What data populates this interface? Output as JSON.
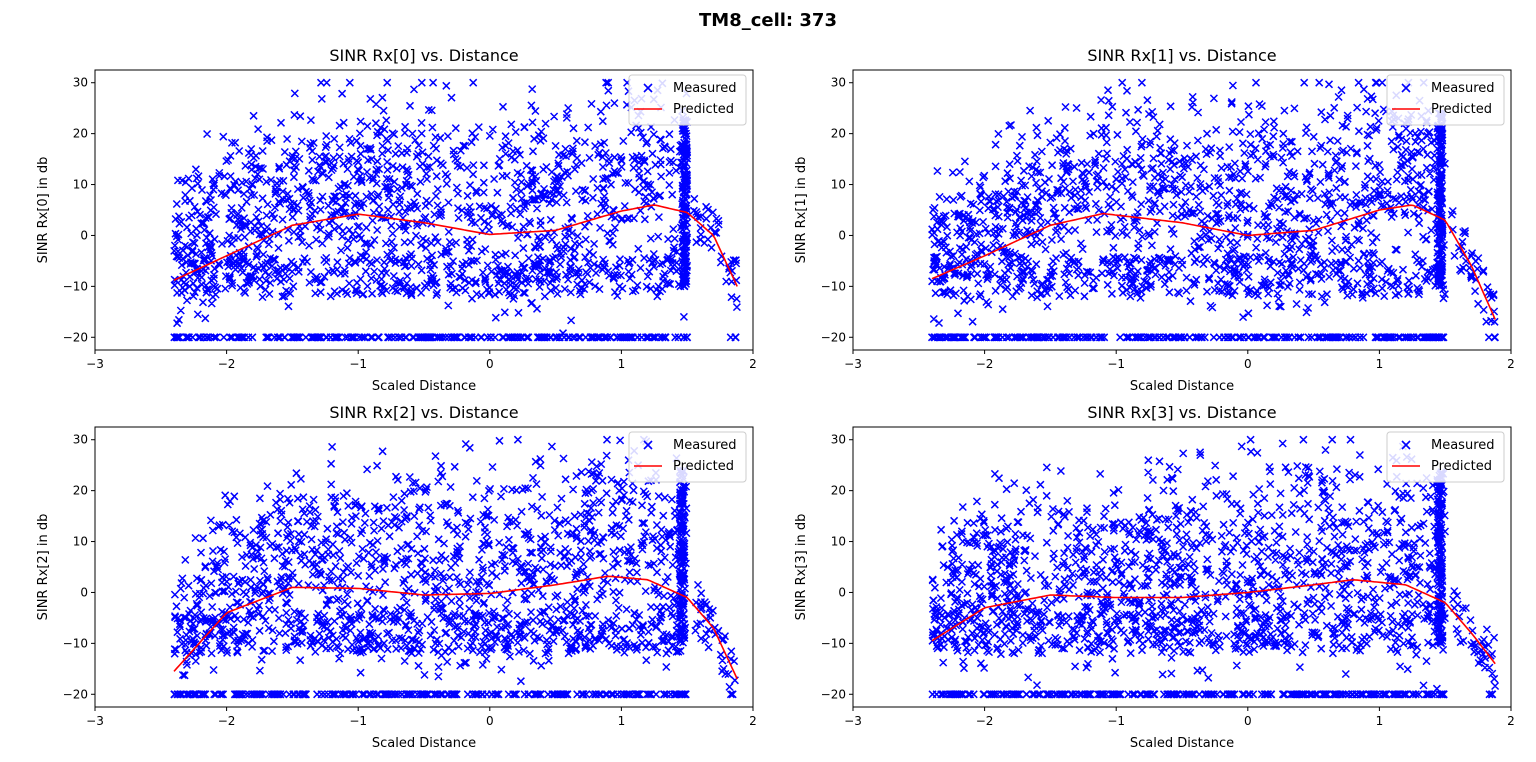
{
  "figure": {
    "suptitle": "TM8_cell: 373"
  },
  "chart_data": [
    {
      "type": "scatter",
      "title": "SINR Rx[0] vs. Distance",
      "xlabel": "Scaled Distance",
      "ylabel": "SINR Rx[0] in db",
      "xlim": [
        -3,
        2
      ],
      "ylim": [
        -22.5,
        32.5
      ],
      "xticks": [
        -3,
        -2,
        -1,
        0,
        1,
        2
      ],
      "yticks": [
        -20,
        -10,
        0,
        10,
        20,
        30
      ],
      "legend": {
        "position": "top-right",
        "entries": [
          "Measured",
          "Predicted"
        ]
      },
      "series": [
        {
          "name": "Measured",
          "kind": "scatter",
          "marker": "x",
          "color": "#0000ff",
          "x_range": [
            -2.4,
            1.88
          ],
          "floor_value": -20,
          "floor_x_range": [
            -2.4,
            1.5
          ],
          "dense_column_x": 1.48,
          "y_range": [
            -20,
            30
          ]
        },
        {
          "name": "Predicted",
          "kind": "line",
          "color": "#ff0000",
          "x": [
            -2.4,
            -2.0,
            -1.5,
            -1.0,
            -0.5,
            0.0,
            0.5,
            1.0,
            1.25,
            1.5,
            1.7,
            1.88
          ],
          "y": [
            -8.8,
            -4,
            2,
            4.2,
            2.5,
            0.2,
            1,
            4.8,
            6,
            4.5,
            0,
            -10
          ]
        }
      ]
    },
    {
      "type": "scatter",
      "title": "SINR Rx[1] vs. Distance",
      "xlabel": "Scaled Distance",
      "ylabel": "SINR Rx[1] in db",
      "xlim": [
        -3,
        2
      ],
      "ylim": [
        -22.5,
        32.5
      ],
      "xticks": [
        -3,
        -2,
        -1,
        0,
        1,
        2
      ],
      "yticks": [
        -20,
        -10,
        0,
        10,
        20,
        30
      ],
      "legend": {
        "position": "top-right",
        "entries": [
          "Measured",
          "Predicted"
        ]
      },
      "series": [
        {
          "name": "Measured",
          "kind": "scatter",
          "marker": "x",
          "color": "#0000ff",
          "x_range": [
            -2.4,
            1.88
          ],
          "floor_value": -20,
          "floor_x_range": [
            -2.4,
            1.5
          ],
          "dense_column_x": 1.46,
          "y_range": [
            -20,
            30
          ]
        },
        {
          "name": "Predicted",
          "kind": "line",
          "color": "#ff0000",
          "x": [
            -2.4,
            -2.0,
            -1.5,
            -1.1,
            -0.5,
            0.0,
            0.5,
            1.0,
            1.25,
            1.5,
            1.7,
            1.88
          ],
          "y": [
            -8.5,
            -4,
            2,
            4.3,
            2.5,
            0,
            1,
            5,
            6,
            3,
            -6,
            -16.5
          ]
        }
      ]
    },
    {
      "type": "scatter",
      "title": "SINR Rx[2] vs. Distance",
      "xlabel": "Scaled Distance",
      "ylabel": "SINR Rx[2] in db",
      "xlim": [
        -3,
        2
      ],
      "ylim": [
        -22.5,
        32.5
      ],
      "xticks": [
        -3,
        -2,
        -1,
        0,
        1,
        2
      ],
      "yticks": [
        -20,
        -10,
        0,
        10,
        20,
        30
      ],
      "legend": {
        "position": "top-right",
        "entries": [
          "Measured",
          "Predicted"
        ]
      },
      "series": [
        {
          "name": "Measured",
          "kind": "scatter",
          "marker": "x",
          "color": "#0000ff",
          "x_range": [
            -2.4,
            1.88
          ],
          "floor_value": -20,
          "floor_x_range": [
            -2.4,
            1.5
          ],
          "dense_column_x": 1.46,
          "y_range": [
            -20,
            30
          ]
        },
        {
          "name": "Predicted",
          "kind": "line",
          "color": "#ff0000",
          "x": [
            -2.4,
            -2.0,
            -1.5,
            -1.0,
            -0.5,
            0.0,
            0.5,
            0.9,
            1.2,
            1.5,
            1.7,
            1.88
          ],
          "y": [
            -15.5,
            -4,
            1,
            0.8,
            -0.5,
            -0.2,
            1.5,
            3.2,
            2.5,
            -1,
            -7,
            -17
          ]
        }
      ]
    },
    {
      "type": "scatter",
      "title": "SINR Rx[3] vs. Distance",
      "xlabel": "Scaled Distance",
      "ylabel": "SINR Rx[3] in db",
      "xlim": [
        -3,
        2
      ],
      "ylim": [
        -22.5,
        32.5
      ],
      "xticks": [
        -3,
        -2,
        -1,
        0,
        1,
        2
      ],
      "yticks": [
        -20,
        -10,
        0,
        10,
        20,
        30
      ],
      "legend": {
        "position": "top-right",
        "entries": [
          "Measured",
          "Predicted"
        ]
      },
      "series": [
        {
          "name": "Measured",
          "kind": "scatter",
          "marker": "x",
          "color": "#0000ff",
          "x_range": [
            -2.4,
            1.88
          ],
          "floor_value": -20,
          "floor_x_range": [
            -2.4,
            1.5
          ],
          "dense_column_x": 1.46,
          "y_range": [
            -20,
            30
          ]
        },
        {
          "name": "Predicted",
          "kind": "line",
          "color": "#ff0000",
          "x": [
            -2.4,
            -2.0,
            -1.5,
            -1.0,
            -0.5,
            0.0,
            0.5,
            0.8,
            1.2,
            1.5,
            1.7,
            1.88
          ],
          "y": [
            -9.5,
            -3,
            -0.5,
            -1,
            -1,
            0,
            1.5,
            2.5,
            1.5,
            -2,
            -8,
            -14
          ]
        }
      ]
    }
  ]
}
